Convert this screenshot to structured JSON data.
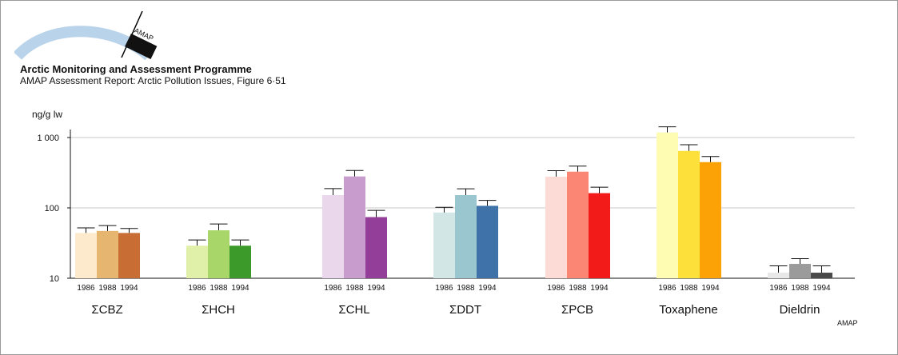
{
  "header": {
    "logo_text": "AMAP",
    "organization": "Arctic Monitoring and Assessment Programme",
    "subtitle": "AMAP Assessment Report: Arctic Pollution Issues, Figure 6·51"
  },
  "footer": {
    "credit": "AMAP"
  },
  "chart_data": {
    "type": "bar",
    "title": "",
    "xlabel": "",
    "ylabel": "ng/g lw",
    "yscale": "log",
    "ylim": [
      10,
      1500
    ],
    "yticks": [
      {
        "value": 10,
        "label": "10"
      },
      {
        "value": 100,
        "label": "100"
      },
      {
        "value": 1000,
        "label": "1 000"
      }
    ],
    "grid": true,
    "legend": "none",
    "years": [
      "1986",
      "1988",
      "1994"
    ],
    "groups": [
      {
        "label": "ΣCBZ",
        "values": [
          44,
          47,
          44
        ],
        "errors": [
          52,
          56,
          51
        ],
        "colors": [
          "#fde9cc",
          "#e6b670",
          "#c86e35"
        ]
      },
      {
        "label": "ΣHCH",
        "values": [
          29,
          48,
          29
        ],
        "errors": [
          35,
          59,
          35
        ],
        "colors": [
          "#e0f0a8",
          "#a8d668",
          "#3c9a2a"
        ]
      },
      {
        "label": "ΣCHL",
        "values": [
          152,
          280,
          74
        ],
        "errors": [
          188,
          340,
          92
        ],
        "colors": [
          "#ead7ec",
          "#c89ccc",
          "#933e98"
        ]
      },
      {
        "label": "ΣDDT",
        "values": [
          86,
          152,
          107
        ],
        "errors": [
          102,
          187,
          128
        ],
        "colors": [
          "#d3e6e6",
          "#9ac6cf",
          "#3e72a8"
        ]
      },
      {
        "label": "ΣPCB",
        "values": [
          278,
          327,
          162
        ],
        "errors": [
          338,
          392,
          197
        ],
        "colors": [
          "#fcdbd6",
          "#fb8673",
          "#f21b19"
        ]
      },
      {
        "label": "Toxaphene",
        "values": [
          1180,
          645,
          447
        ],
        "errors": [
          1420,
          790,
          537
        ],
        "colors": [
          "#fdfcb2",
          "#fde03a",
          "#fda206"
        ]
      },
      {
        "label": "Dieldrin",
        "values": [
          12,
          16,
          12
        ],
        "errors": [
          15,
          19,
          15
        ],
        "colors": [
          "#e8e8e8",
          "#9b9b9b",
          "#4a4a4a"
        ]
      }
    ]
  }
}
